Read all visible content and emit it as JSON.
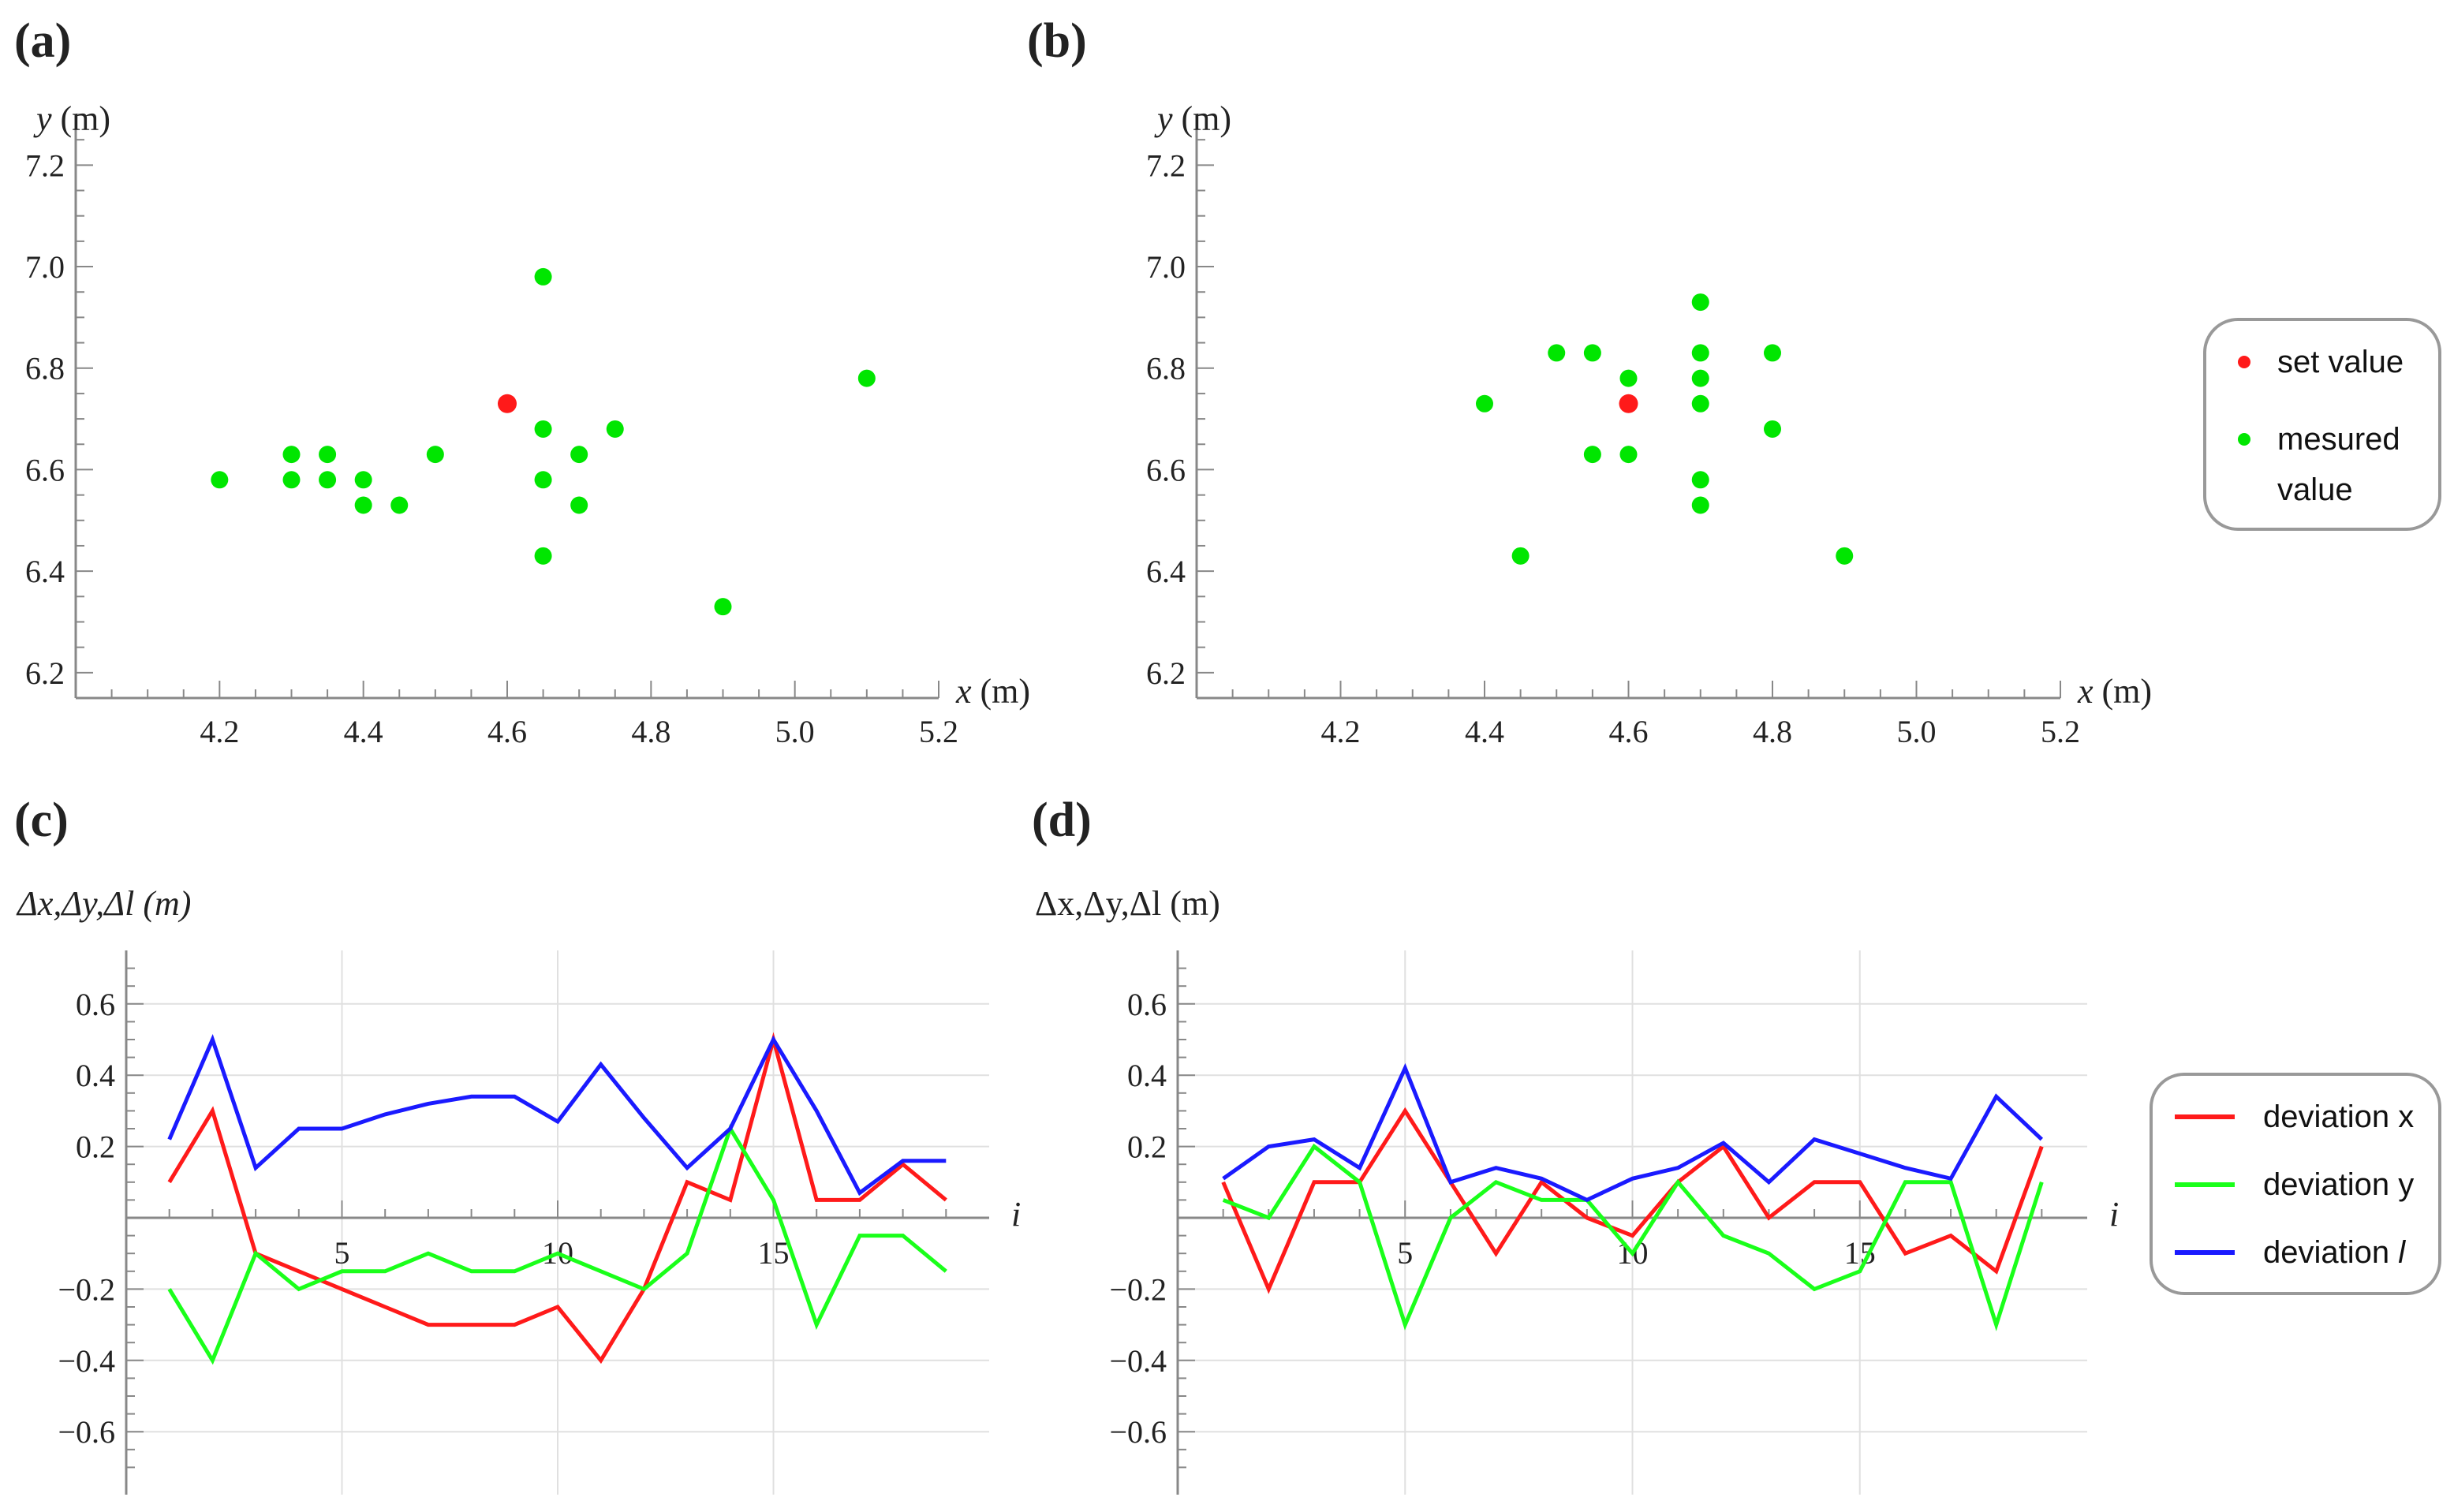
{
  "colors": {
    "set": "#ff1a1a",
    "measured": "#00e600",
    "dev_x": "#ff1a1a",
    "dev_y": "#1aff1a",
    "dev_l": "#1a1aff",
    "axis": "#888888",
    "grid": "#e0e0e0"
  },
  "chart_data": [
    {
      "id": "a",
      "panel_label": "(a)",
      "type": "scatter",
      "xlabel_var": "x",
      "xlabel_unit": " (m)",
      "ylabel_var": "y",
      "ylabel_unit": " (m)",
      "xlim": [
        4.0,
        5.2
      ],
      "ylim": [
        6.15,
        7.3
      ],
      "xticks": [
        4.2,
        4.4,
        4.6,
        4.8,
        5.0,
        5.2
      ],
      "xtick_labels": [
        "4.2",
        "4.4",
        "4.6",
        "4.8",
        "5.0",
        "5.2"
      ],
      "yticks": [
        6.2,
        6.4,
        6.6,
        6.8,
        7.0,
        7.2
      ],
      "ytick_labels": [
        "6.2",
        "6.4",
        "6.6",
        "6.8",
        "7.0",
        "7.2"
      ],
      "set_value": [
        4.6,
        6.73
      ],
      "measured": [
        [
          4.2,
          6.58
        ],
        [
          4.3,
          6.63
        ],
        [
          4.3,
          6.58
        ],
        [
          4.35,
          6.63
        ],
        [
          4.35,
          6.58
        ],
        [
          4.4,
          6.58
        ],
        [
          4.4,
          6.53
        ],
        [
          4.45,
          6.53
        ],
        [
          4.5,
          6.63
        ],
        [
          4.65,
          6.98
        ],
        [
          4.65,
          6.68
        ],
        [
          4.65,
          6.58
        ],
        [
          4.65,
          6.43
        ],
        [
          4.7,
          6.63
        ],
        [
          4.7,
          6.53
        ],
        [
          4.75,
          6.68
        ],
        [
          4.9,
          6.33
        ],
        [
          5.1,
          6.78
        ]
      ]
    },
    {
      "id": "b",
      "panel_label": "(b)",
      "type": "scatter",
      "xlabel_var": "x",
      "xlabel_unit": " (m)",
      "ylabel_var": "y",
      "ylabel_unit": " (m)",
      "xlim": [
        4.0,
        5.2
      ],
      "ylim": [
        6.15,
        7.3
      ],
      "xticks": [
        4.2,
        4.4,
        4.6,
        4.8,
        5.0,
        5.2
      ],
      "xtick_labels": [
        "4.2",
        "4.4",
        "4.6",
        "4.8",
        "5.0",
        "5.2"
      ],
      "yticks": [
        6.2,
        6.4,
        6.6,
        6.8,
        7.0,
        7.2
      ],
      "ytick_labels": [
        "6.2",
        "6.4",
        "6.6",
        "6.8",
        "7.0",
        "7.2"
      ],
      "set_value": [
        4.6,
        6.73
      ],
      "measured": [
        [
          4.4,
          6.73
        ],
        [
          4.45,
          6.43
        ],
        [
          4.5,
          6.83
        ],
        [
          4.55,
          6.83
        ],
        [
          4.55,
          6.63
        ],
        [
          4.6,
          6.78
        ],
        [
          4.6,
          6.63
        ],
        [
          4.7,
          6.93
        ],
        [
          4.7,
          6.83
        ],
        [
          4.7,
          6.78
        ],
        [
          4.7,
          6.73
        ],
        [
          4.7,
          6.58
        ],
        [
          4.7,
          6.53
        ],
        [
          4.8,
          6.83
        ],
        [
          4.8,
          6.68
        ],
        [
          4.9,
          6.43
        ]
      ]
    },
    {
      "id": "c",
      "panel_label": "(c)",
      "type": "line",
      "ylabel": "Δx,Δy,Δl (m)",
      "xlabel": "i",
      "xlim": [
        0,
        20
      ],
      "ylim": [
        -0.75,
        0.75
      ],
      "xticks": [
        5,
        10,
        15
      ],
      "xtick_labels": [
        "5",
        "10",
        "15"
      ],
      "yticks": [
        -0.6,
        -0.4,
        -0.2,
        0.2,
        0.4,
        0.6
      ],
      "ytick_labels": [
        "−0.6",
        "−0.4",
        "−0.2",
        "0.2",
        "0.4",
        "0.6"
      ],
      "x": [
        1,
        2,
        3,
        4,
        5,
        6,
        7,
        8,
        9,
        10,
        11,
        12,
        13,
        14,
        15,
        16,
        17,
        18,
        19
      ],
      "series": [
        {
          "name": "deviation x",
          "color_key": "dev_x",
          "values": [
            0.1,
            0.3,
            -0.1,
            -0.15,
            -0.2,
            -0.25,
            -0.3,
            -0.3,
            -0.3,
            -0.25,
            -0.4,
            -0.2,
            0.1,
            0.05,
            0.5,
            0.05,
            0.05,
            0.15,
            0.05
          ]
        },
        {
          "name": "deviation y",
          "color_key": "dev_y",
          "values": [
            -0.2,
            -0.4,
            -0.1,
            -0.2,
            -0.15,
            -0.15,
            -0.1,
            -0.15,
            -0.15,
            -0.1,
            -0.15,
            -0.2,
            -0.1,
            0.25,
            0.05,
            -0.3,
            -0.05,
            -0.05,
            -0.15
          ]
        },
        {
          "name": "deviation l",
          "color_key": "dev_l",
          "values": [
            0.22,
            0.5,
            0.14,
            0.25,
            0.25,
            0.29,
            0.32,
            0.34,
            0.34,
            0.27,
            0.43,
            0.28,
            0.14,
            0.25,
            0.5,
            0.3,
            0.07,
            0.16,
            0.16
          ]
        }
      ]
    },
    {
      "id": "d",
      "panel_label": "(d)",
      "type": "line",
      "ylabel": "Δx,Δy,Δl (m)",
      "xlabel": "i",
      "xlim": [
        0,
        20
      ],
      "ylim": [
        -0.75,
        0.75
      ],
      "xticks": [
        5,
        10,
        15
      ],
      "xtick_labels": [
        "5",
        "10",
        "15"
      ],
      "yticks": [
        -0.6,
        -0.4,
        -0.2,
        0.2,
        0.4,
        0.6
      ],
      "ytick_labels": [
        "−0.6",
        "−0.4",
        "−0.2",
        "0.2",
        "0.4",
        "0.6"
      ],
      "x": [
        1,
        2,
        3,
        4,
        5,
        6,
        7,
        8,
        9,
        10,
        11,
        12,
        13,
        14,
        15,
        16,
        17,
        18,
        19
      ],
      "series": [
        {
          "name": "deviation x",
          "color_key": "dev_x",
          "values": [
            0.1,
            -0.2,
            0.1,
            0.1,
            0.3,
            0.1,
            -0.1,
            0.1,
            0.0,
            -0.05,
            0.1,
            0.2,
            0.0,
            0.1,
            0.1,
            -0.1,
            -0.05,
            -0.15,
            0.2
          ]
        },
        {
          "name": "deviation y",
          "color_key": "dev_y",
          "values": [
            0.05,
            0.0,
            0.2,
            0.1,
            -0.3,
            0.0,
            0.1,
            0.05,
            0.05,
            -0.1,
            0.1,
            -0.05,
            -0.1,
            -0.2,
            -0.15,
            0.1,
            0.1,
            -0.3,
            0.1
          ]
        },
        {
          "name": "deviation l",
          "color_key": "dev_l",
          "values": [
            0.11,
            0.2,
            0.22,
            0.14,
            0.42,
            0.1,
            0.14,
            0.11,
            0.05,
            0.11,
            0.14,
            0.21,
            0.1,
            0.22,
            0.18,
            0.14,
            0.11,
            0.34,
            0.22
          ]
        }
      ]
    }
  ],
  "legends": {
    "scatter": [
      {
        "label": "set value",
        "color_key": "set"
      },
      {
        "label": "mesured\nvalue",
        "color_key": "measured"
      }
    ],
    "lines": [
      {
        "label": "deviation x",
        "color_key": "dev_x"
      },
      {
        "label": "deviation y",
        "color_key": "dev_y"
      },
      {
        "label": "deviation ",
        "label_italic": "l",
        "color_key": "dev_l"
      }
    ]
  }
}
